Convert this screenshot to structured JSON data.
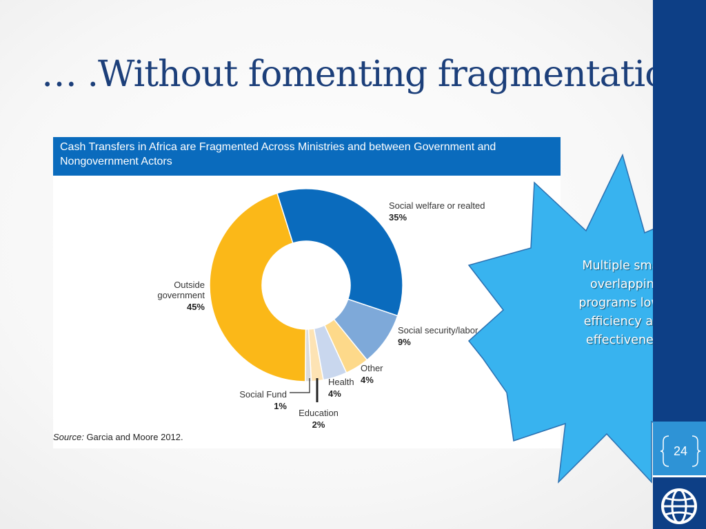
{
  "slide": {
    "title": "… .Without fomenting fragmentation",
    "page_number": "24",
    "callout_text": "Multiple small, overlapping programs lower efficiency and effectiveness",
    "logo": "globe-logo-icon"
  },
  "chart_data": {
    "type": "pie",
    "title": "Cash Transfers in Africa are Fragmented Across Ministries and between Government and Nongovernment Actors",
    "source_label": "Source:",
    "source_text": "Garcia and Moore 2012.",
    "donut": true,
    "slices": [
      {
        "label": "Social welfare or realted",
        "value": 35,
        "display": "35%",
        "color": "#0a6bbd"
      },
      {
        "label": "Social security/labor",
        "value": 9,
        "display": "9%",
        "color": "#7ea9d9"
      },
      {
        "label": "Other",
        "value": 4,
        "display": "4%",
        "color": "#fdd98a"
      },
      {
        "label": "Health",
        "value": 4,
        "display": "4%",
        "color": "#c9d7ee"
      },
      {
        "label": "Education",
        "value": 2,
        "display": "2%",
        "color": "#fde3b4"
      },
      {
        "label": "Social Fund",
        "value": 1,
        "display": "1%",
        "color": "#dcdcdc"
      },
      {
        "label": "Outside government",
        "label_lines": [
          "Outside",
          "government"
        ],
        "value": 45,
        "display": "45%",
        "color": "#fbb818"
      }
    ]
  },
  "colors": {
    "title": "#1c3f7a",
    "band_dark": "#0d3f86",
    "band_light": "#2e93d6",
    "star_fill": "#38b3ef",
    "header": "#0a6bbd"
  }
}
